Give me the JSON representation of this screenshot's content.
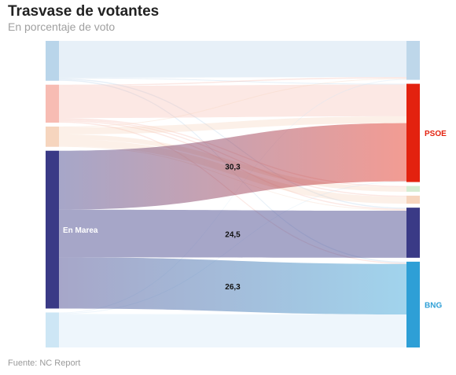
{
  "header": {
    "title": "Trasvase de votantes",
    "subtitle": "En porcentaje de voto"
  },
  "footer": {
    "source": "Fuente: NC Report"
  },
  "chart_data": {
    "type": "sankey",
    "title": "Trasvase de votantes",
    "subtitle": "En porcentaje de voto",
    "source_nodes": [
      {
        "id": "s1",
        "label": "",
        "color": "#b9d5ea"
      },
      {
        "id": "s2",
        "label": "",
        "color": "#f7bcb3"
      },
      {
        "id": "s3",
        "label": "",
        "color": "#f6d5be"
      },
      {
        "id": "s4",
        "label": "En Marea",
        "color": "#3a3a86"
      },
      {
        "id": "s5",
        "label": "",
        "color": "#cde6f5"
      }
    ],
    "target_nodes": [
      {
        "id": "t1",
        "label": "",
        "color": "#bed7ea"
      },
      {
        "id": "t2",
        "label": "PSOE",
        "color": "#e3220f"
      },
      {
        "id": "t3",
        "label": "",
        "color": "#d6ecd2"
      },
      {
        "id": "t4",
        "label": "",
        "color": "#f6d5be"
      },
      {
        "id": "t5",
        "label": "",
        "color": "#3a3a86"
      },
      {
        "id": "t6",
        "label": "BNG",
        "color": "#2e9fd6"
      }
    ],
    "flows": [
      {
        "source": "s1",
        "target": "t1",
        "value": 18.9
      },
      {
        "source": "s1",
        "target": "t2",
        "value": 0.4
      },
      {
        "source": "s1",
        "target": "t5",
        "value": 0.6
      },
      {
        "source": "s1",
        "target": "t6",
        "value": 0.6
      },
      {
        "source": "s2",
        "target": "t1",
        "value": 0.6
      },
      {
        "source": "s2",
        "target": "t2",
        "value": 16.5
      },
      {
        "source": "s2",
        "target": "t3",
        "value": 0.6
      },
      {
        "source": "s2",
        "target": "t4",
        "value": 0.6
      },
      {
        "source": "s2",
        "target": "t5",
        "value": 0.6
      },
      {
        "source": "s2",
        "target": "t6",
        "value": 0.6
      },
      {
        "source": "s3",
        "target": "t1",
        "value": 0.4
      },
      {
        "source": "s3",
        "target": "t2",
        "value": 3.6
      },
      {
        "source": "s3",
        "target": "t3",
        "value": 2.4
      },
      {
        "source": "s3",
        "target": "t4",
        "value": 3.6
      },
      {
        "source": "s3",
        "target": "t5",
        "value": 0.4
      },
      {
        "source": "s4",
        "target": "t2",
        "value": 30.3,
        "label": "30,3"
      },
      {
        "source": "s4",
        "target": "t5",
        "value": 24.5,
        "label": "24,5"
      },
      {
        "source": "s4",
        "target": "t6",
        "value": 26.3,
        "label": "26,3"
      },
      {
        "source": "s5",
        "target": "t1",
        "value": 0.4
      },
      {
        "source": "s5",
        "target": "t2",
        "value": 0.4
      },
      {
        "source": "s5",
        "target": "t6",
        "value": 17.2
      }
    ]
  }
}
